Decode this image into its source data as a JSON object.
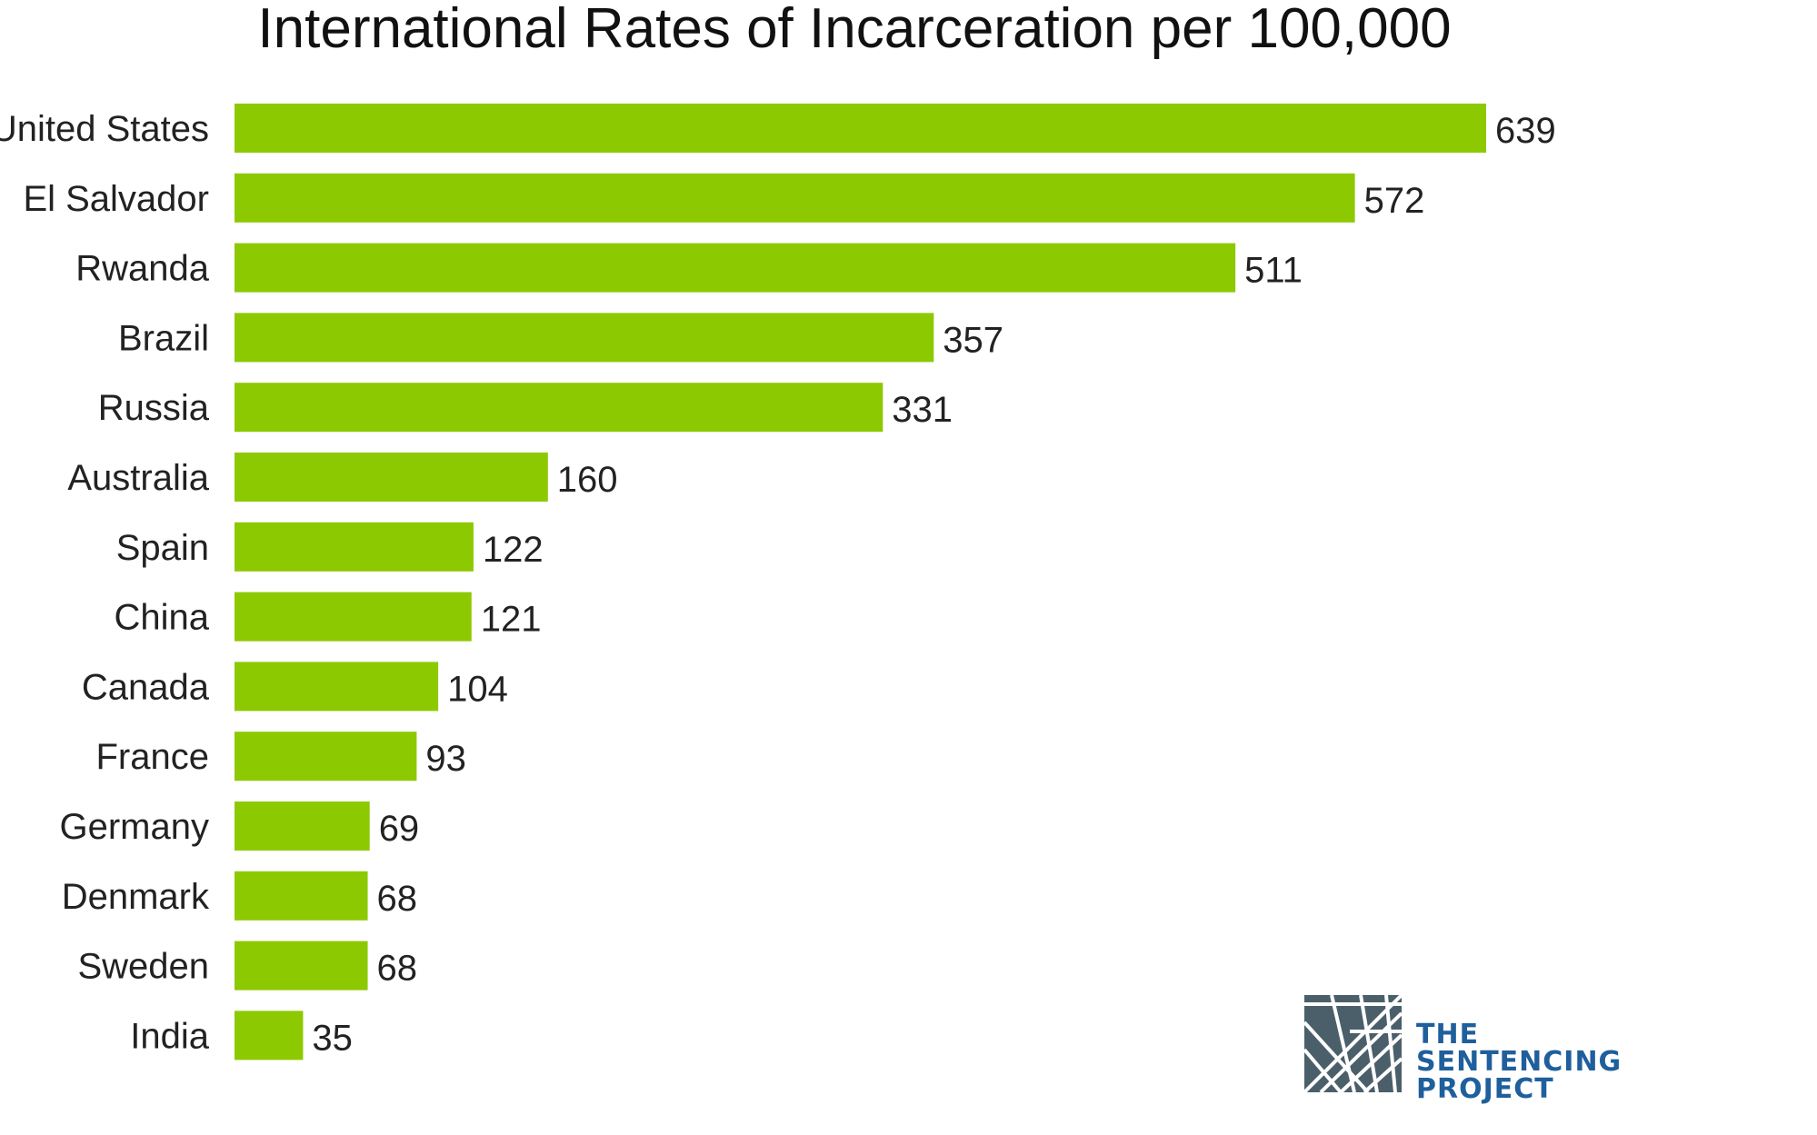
{
  "chart_data": {
    "type": "bar",
    "orientation": "horizontal",
    "title": "International Rates of Incarceration per 100,000",
    "categories": [
      "United States",
      "El Salvador",
      "Rwanda",
      "Brazil",
      "Russia",
      "Australia",
      "Spain",
      "China",
      "Canada",
      "France",
      "Germany",
      "Denmark",
      "Sweden",
      "India"
    ],
    "values": [
      639,
      572,
      511,
      357,
      331,
      160,
      122,
      121,
      104,
      93,
      69,
      68,
      68,
      35
    ],
    "xlim": [
      0,
      639
    ],
    "bar_color": "#8dc900",
    "grid": false,
    "legend": "none",
    "data_labels": true
  },
  "branding": {
    "logo_lines": [
      "THE",
      "SENTENCING",
      "PROJECT"
    ],
    "logo_text_color": "#1f5f9c",
    "logo_mark_color": "#4a5f6a"
  }
}
